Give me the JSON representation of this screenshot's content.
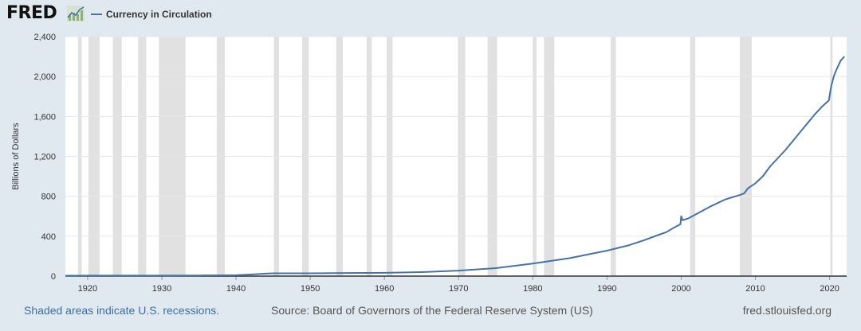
{
  "header": {
    "logo_text": "FRED",
    "logo_icon": "fred-chart-icon",
    "legend_label": "Currency in Circulation",
    "series_color": "#4572a7"
  },
  "footer": {
    "recession_note": "Shaded areas indicate U.S. recessions.",
    "source": "Source: Board of Governors of the Federal Reserve System (US)",
    "site": "fred.stlouisfed.org"
  },
  "colors": {
    "background": "#e1e9f0",
    "plot_background": "#ffffff",
    "recession_shade": "#e1e1e1",
    "gridline": "#e6e6e6",
    "link": "#3b6fa0"
  },
  "chart_data": {
    "type": "line",
    "title": "",
    "xlabel": "",
    "ylabel": "Billions of Dollars",
    "xlim": [
      1917,
      2022.3
    ],
    "ylim": [
      0,
      2400
    ],
    "yticks": [
      0,
      400,
      800,
      1200,
      1600,
      2000,
      2400
    ],
    "ytick_labels": [
      "0",
      "400",
      "800",
      "1,200",
      "1,600",
      "2,000",
      "2,400"
    ],
    "xticks": [
      1920,
      1930,
      1940,
      1950,
      1960,
      1970,
      1980,
      1990,
      2000,
      2010,
      2020
    ],
    "xtick_labels": [
      "1920",
      "1930",
      "1940",
      "1950",
      "1960",
      "1970",
      "1980",
      "1990",
      "2000",
      "2010",
      "2020"
    ],
    "grid": true,
    "legend_position": "top-left",
    "recessions": [
      [
        1918.7,
        1919.2
      ],
      [
        1920.1,
        1921.6
      ],
      [
        1923.4,
        1924.6
      ],
      [
        1926.8,
        1927.9
      ],
      [
        1929.6,
        1933.2
      ],
      [
        1937.4,
        1938.5
      ],
      [
        1945.1,
        1945.8
      ],
      [
        1948.9,
        1949.8
      ],
      [
        1953.5,
        1954.4
      ],
      [
        1957.6,
        1958.3
      ],
      [
        1960.3,
        1961.1
      ],
      [
        1969.9,
        1970.9
      ],
      [
        1973.9,
        1975.2
      ],
      [
        1980.0,
        1980.5
      ],
      [
        1981.5,
        1982.9
      ],
      [
        1990.5,
        1991.2
      ],
      [
        2001.2,
        2001.9
      ],
      [
        2007.9,
        2009.5
      ],
      [
        2020.1,
        2020.4
      ]
    ],
    "series": [
      {
        "name": "Currency in Circulation",
        "x": [
          1917,
          1920,
          1925,
          1930,
          1935,
          1940,
          1942,
          1944,
          1945,
          1946,
          1948,
          1950,
          1955,
          1960,
          1965,
          1970,
          1975,
          1980,
          1985,
          1990,
          1993,
          1995,
          1997,
          1998,
          1999,
          1999.9,
          2000.0,
          2000.2,
          2001,
          2002,
          2004,
          2006,
          2008,
          2008.5,
          2009,
          2010,
          2011,
          2012,
          2014,
          2016,
          2018,
          2019,
          2019.9,
          2020.2,
          2020.6,
          2021,
          2021.5,
          2022
        ],
        "values": [
          4,
          5,
          5,
          5,
          6,
          9,
          16,
          25,
          28,
          28,
          28,
          28,
          31,
          33,
          40,
          55,
          80,
          125,
          180,
          255,
          310,
          360,
          415,
          440,
          485,
          520,
          600,
          560,
          580,
          620,
          700,
          770,
          815,
          830,
          880,
          930,
          1000,
          1100,
          1260,
          1440,
          1620,
          1700,
          1760,
          1900,
          2010,
          2080,
          2160,
          2200
        ]
      }
    ]
  }
}
